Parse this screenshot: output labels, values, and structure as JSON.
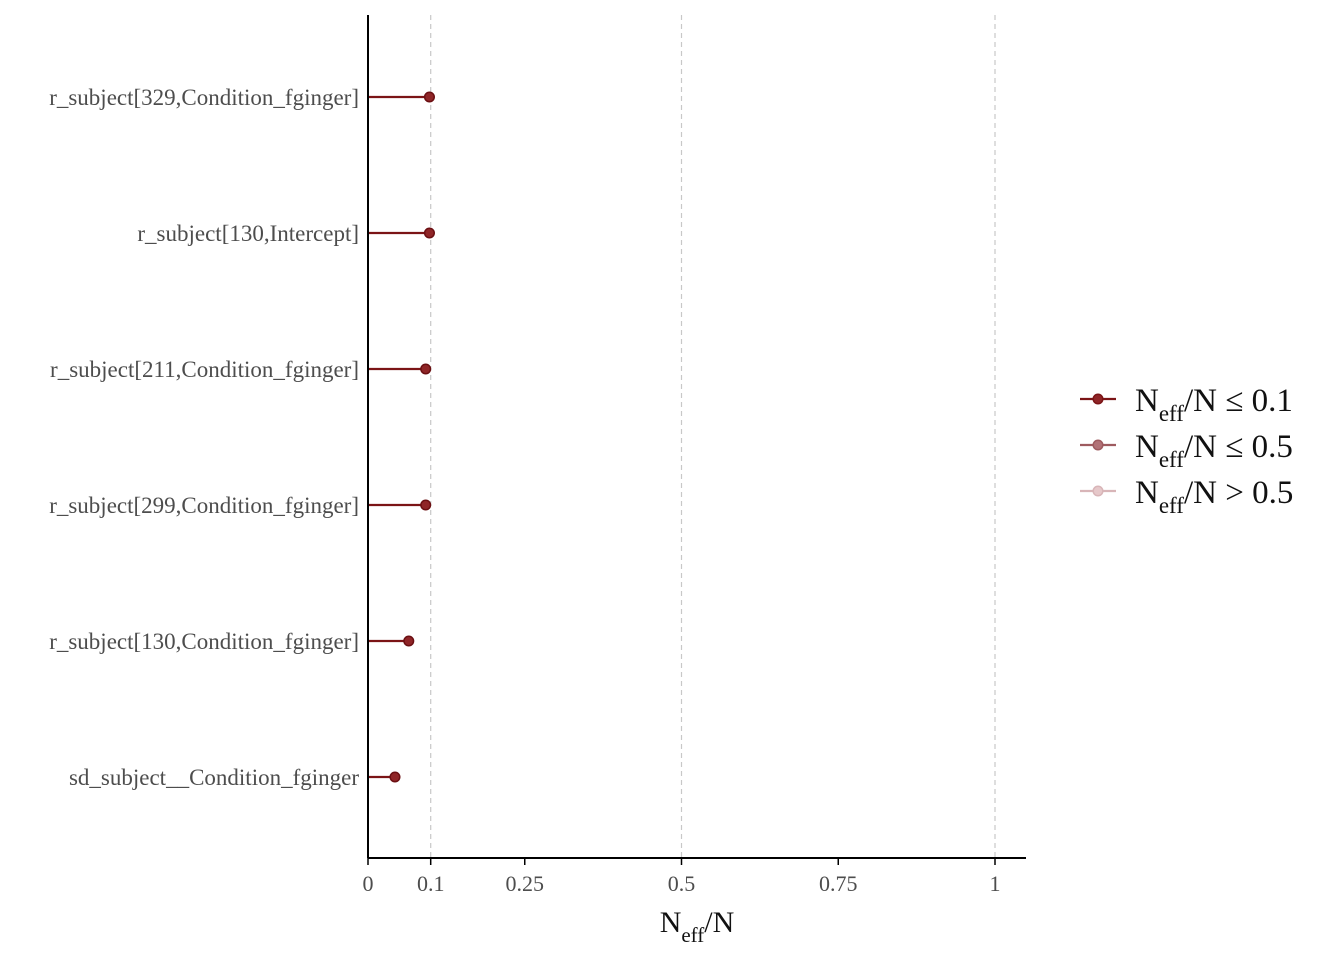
{
  "chart_data": {
    "type": "scatter",
    "subtype": "lollipop",
    "title": "",
    "xlabel": {
      "main": "N",
      "sub": "eff",
      "rest": "/N"
    },
    "ylabel": "",
    "xlim": [
      0,
      1.05
    ],
    "x_ticks": [
      0,
      0.1,
      0.25,
      0.5,
      0.75,
      1
    ],
    "x_tick_labels": [
      "0",
      "0.1",
      "0.25",
      "0.5",
      "0.75",
      "1"
    ],
    "reference_lines": [
      0.1,
      0.5,
      1
    ],
    "grid": false,
    "categories": [
      "r_subject[329,Condition_fginger]",
      "r_subject[130,Intercept]",
      "r_subject[211,Condition_fginger]",
      "r_subject[299,Condition_fginger]",
      "r_subject[130,Condition_fginger]",
      "sd_subject__Condition_fginger"
    ],
    "values": [
      0.098,
      0.098,
      0.092,
      0.092,
      0.065,
      0.043
    ],
    "legend": {
      "position": "right",
      "entries": [
        {
          "main": "N",
          "sub": "eff",
          "rest": "/N ≤ 0.1",
          "color": "#7b1416",
          "fill": "#8f2527"
        },
        {
          "main": "N",
          "sub": "eff",
          "rest": "/N ≤ 0.5",
          "color": "#9e5b5f",
          "fill": "#b27277"
        },
        {
          "main": "N",
          "sub": "eff",
          "rest": "/N > 0.5",
          "color": "#d8b5b8",
          "fill": "#e6c8ca"
        }
      ]
    },
    "colors": {
      "point_stroke": "#6b0f12",
      "point_fill": "#8f2527",
      "line": "#7b1416",
      "ref_line": "#c8c8c8",
      "axis": "#000000"
    }
  }
}
